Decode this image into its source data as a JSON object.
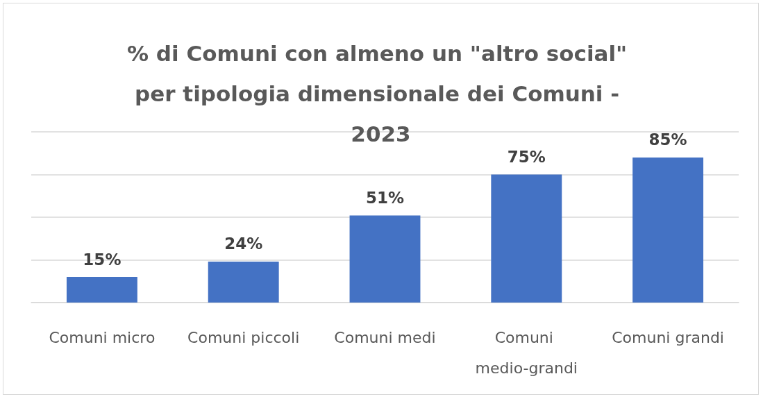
{
  "chart_data": {
    "type": "bar",
    "title": "% di Comuni con almeno un \"altro social\" per tipologia dimensionale dei Comuni - 2023",
    "categories": [
      "Comuni micro",
      "Comuni piccoli",
      "Comuni medi",
      "Comuni medio-grandi",
      "Comuni grandi"
    ],
    "values": [
      15,
      24,
      51,
      75,
      85
    ],
    "value_labels": [
      "15%",
      "24%",
      "51%",
      "75%",
      "85%"
    ],
    "color": "#4472c4",
    "ylim": [
      0,
      100
    ],
    "yticks": [
      {
        "value": 0,
        "label": null
      },
      {
        "value": 25,
        "label": null
      },
      {
        "value": 50,
        "label": null
      },
      {
        "value": 75,
        "label": null
      },
      {
        "value": 100,
        "label": null
      }
    ],
    "grid": "y",
    "tick_labels": "x",
    "legend": false
  }
}
